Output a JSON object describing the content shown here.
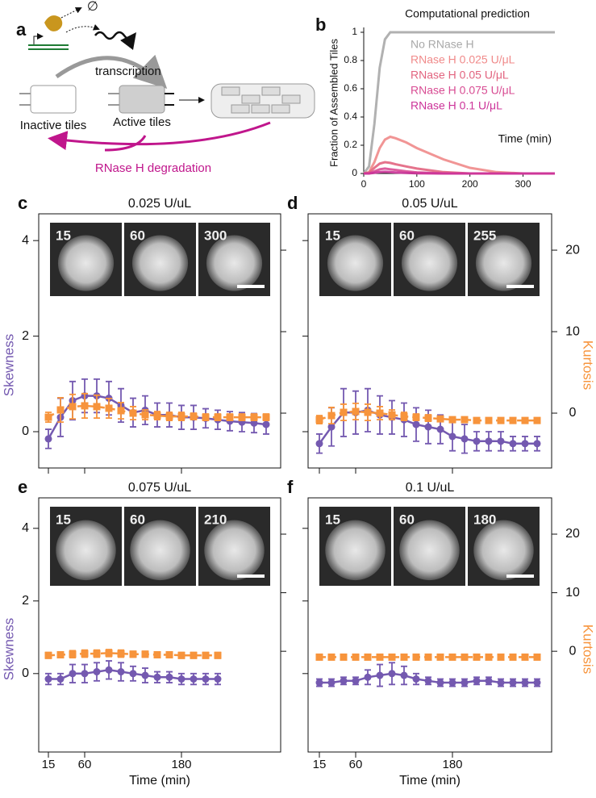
{
  "diagram": {
    "label": "a",
    "empty_set": "∅",
    "transcription": "transcription",
    "inactive": "Inactive tiles",
    "active": "Active tiles",
    "degradation": "RNase H degradation"
  },
  "chart_data": [
    {
      "type": "line",
      "label": "b",
      "title": "Computational prediction",
      "ylabel": "Fraction of Assembled Tiles",
      "annotation": "Time (min)",
      "x": [
        0,
        10,
        20,
        30,
        40,
        50,
        60,
        80,
        100,
        150,
        200,
        250,
        300,
        360
      ],
      "xlim": [
        0,
        360
      ],
      "ylim": [
        0,
        1
      ],
      "xticks": [
        0,
        100,
        200,
        300
      ],
      "yticks": [
        0,
        0.2,
        0.4,
        0.6,
        0.8,
        1
      ],
      "series": [
        {
          "name": "No RNase H",
          "color": "#a9a9a9",
          "values": [
            0,
            0.05,
            0.35,
            0.75,
            0.95,
            1,
            1,
            1,
            1,
            1,
            1,
            1,
            1,
            1
          ]
        },
        {
          "name": "RNase H 0.025 U/μL",
          "color": "#f08a8a",
          "values": [
            0,
            0.01,
            0.08,
            0.18,
            0.24,
            0.26,
            0.25,
            0.22,
            0.18,
            0.1,
            0.04,
            0.01,
            0,
            0
          ]
        },
        {
          "name": "RNase H 0.05 U/μL",
          "color": "#e2647f",
          "values": [
            0,
            0.005,
            0.04,
            0.07,
            0.08,
            0.075,
            0.065,
            0.05,
            0.035,
            0.01,
            0,
            0,
            0,
            0
          ]
        },
        {
          "name": "RNase H 0.075 U/μL",
          "color": "#d84c93",
          "values": [
            0,
            0,
            0.015,
            0.03,
            0.035,
            0.03,
            0.025,
            0.015,
            0.008,
            0,
            0,
            0,
            0,
            0
          ]
        },
        {
          "name": "RNase H 0.1 U/μL",
          "color": "#cc3399",
          "values": [
            0,
            0,
            0.005,
            0.01,
            0.012,
            0.01,
            0.007,
            0.004,
            0.002,
            0,
            0,
            0,
            0,
            0
          ]
        }
      ]
    },
    {
      "type": "errorbar",
      "label": "c",
      "title": "0.025 U/uL",
      "ylabel": "Skewness",
      "insets": [
        "15",
        "60",
        "300"
      ],
      "x": [
        15,
        30,
        45,
        60,
        75,
        90,
        105,
        120,
        135,
        150,
        165,
        180,
        195,
        210,
        225,
        240,
        255,
        270,
        285
      ],
      "xlim": [
        3,
        303
      ],
      "ylim": [
        -0.76,
        4.56
      ],
      "y2lim": [
        -6.73,
        24.46
      ],
      "xticks": [
        15,
        60,
        180
      ],
      "xtick_labels": false,
      "yticks": [
        0,
        2,
        4
      ],
      "ytick_labels": true,
      "y2ticks": [
        0,
        10,
        20
      ],
      "y2tick_labels": false,
      "series": [
        {
          "color": "#7459b0",
          "marker": "o",
          "linestyle": "-",
          "values": [
            -0.15,
            0.3,
            0.65,
            0.75,
            0.75,
            0.7,
            0.55,
            0.4,
            0.45,
            0.35,
            0.35,
            0.3,
            0.3,
            0.28,
            0.25,
            0.22,
            0.2,
            0.18,
            0.15
          ],
          "errors": [
            0.2,
            0.4,
            0.4,
            0.35,
            0.35,
            0.35,
            0.35,
            0.3,
            0.3,
            0.25,
            0.25,
            0.25,
            0.25,
            0.2,
            0.2,
            0.2,
            0.2,
            0.2,
            0.2
          ]
        },
        {
          "color": "#f7943c",
          "marker": "s",
          "linestyle": "--",
          "axis": "y2",
          "values": [
            -0.5,
            0.4,
            0.8,
            0.9,
            0.8,
            0.6,
            0.3,
            0,
            -0.2,
            -0.3,
            -0.4,
            -0.4,
            -0.4,
            -0.5,
            -0.5,
            -0.5,
            -0.5,
            -0.5,
            -0.5
          ],
          "errors": [
            0.6,
            1.5,
            1.5,
            1.5,
            1.4,
            1.2,
            1,
            0.8,
            0.6,
            0.5,
            0.5,
            0.5,
            0.4,
            0.4,
            0.4,
            0.4,
            0.4,
            0.4,
            0.4
          ]
        }
      ]
    },
    {
      "type": "errorbar",
      "label": "d",
      "title": "0.05 U/uL",
      "y2label": "Kurtosis",
      "insets": [
        "15",
        "60",
        "255"
      ],
      "x": [
        15,
        30,
        45,
        60,
        75,
        90,
        105,
        120,
        135,
        150,
        165,
        180,
        195,
        210,
        225,
        240,
        255,
        270,
        285
      ],
      "xlim": [
        1,
        303
      ],
      "ylim": [
        -0.76,
        4.56
      ],
      "y2lim": [
        -6.73,
        24.46
      ],
      "xticks": [
        15,
        60,
        180
      ],
      "xtick_labels": false,
      "yticks": [
        0,
        2,
        4
      ],
      "ytick_labels": false,
      "y2ticks": [
        0,
        10,
        20
      ],
      "y2tick_labels": true,
      "series": [
        {
          "color": "#7459b0",
          "marker": "o",
          "linestyle": "-",
          "values": [
            -0.25,
            0.1,
            0.4,
            0.4,
            0.45,
            0.35,
            0.3,
            0.25,
            0.15,
            0.1,
            0.05,
            -0.1,
            -0.15,
            -0.2,
            -0.2,
            -0.2,
            -0.25,
            -0.25,
            -0.25
          ],
          "errors": [
            0.2,
            0.4,
            0.5,
            0.45,
            0.45,
            0.4,
            0.35,
            0.35,
            0.35,
            0.35,
            0.3,
            0.3,
            0.3,
            0.2,
            0.2,
            0.2,
            0.15,
            0.15,
            0.15
          ]
        },
        {
          "color": "#f7943c",
          "marker": "s",
          "linestyle": "--",
          "axis": "y2",
          "values": [
            -0.8,
            -0.3,
            0.1,
            0.2,
            0.1,
            0,
            -0.2,
            -0.4,
            -0.5,
            -0.6,
            -0.7,
            -0.8,
            -0.8,
            -0.9,
            -0.9,
            -0.9,
            -0.9,
            -0.9,
            -0.9
          ],
          "errors": [
            0.5,
            1,
            1,
            1,
            1,
            0.8,
            0.6,
            0.5,
            0.4,
            0.4,
            0.3,
            0.3,
            0.3,
            0.3,
            0.3,
            0.3,
            0.3,
            0.3,
            0.3
          ]
        }
      ]
    },
    {
      "type": "errorbar",
      "label": "e",
      "title": "0.075 U/uL",
      "ylabel": "Skewness",
      "xlabel": "Time (min)",
      "insets": [
        "15",
        "60",
        "210"
      ],
      "x": [
        15,
        30,
        45,
        60,
        75,
        90,
        105,
        120,
        135,
        150,
        165,
        180,
        195,
        210,
        225
      ],
      "xlim": [
        3,
        303
      ],
      "ylim": [
        -2.16,
        4.84
      ],
      "y2lim": [
        -17.2,
        26.2
      ],
      "xticks": [
        15,
        60,
        180
      ],
      "xtick_labels": true,
      "yticks": [
        0,
        2,
        4
      ],
      "ytick_labels": true,
      "y2ticks": [
        0,
        10,
        20
      ],
      "y2tick_labels": false,
      "series": [
        {
          "color": "#7459b0",
          "marker": "o",
          "linestyle": "-",
          "values": [
            -0.15,
            -0.15,
            0,
            0,
            0.05,
            0.1,
            0.05,
            0,
            -0.05,
            -0.1,
            -0.1,
            -0.15,
            -0.15,
            -0.15,
            -0.15
          ],
          "errors": [
            0.15,
            0.15,
            0.25,
            0.25,
            0.25,
            0.25,
            0.25,
            0.2,
            0.2,
            0.15,
            0.15,
            0.15,
            0.15,
            0.15,
            0.15
          ]
        },
        {
          "color": "#f7943c",
          "marker": "s",
          "linestyle": "--",
          "axis": "y2",
          "values": [
            -0.7,
            -0.6,
            -0.5,
            -0.4,
            -0.4,
            -0.3,
            -0.4,
            -0.5,
            -0.5,
            -0.6,
            -0.6,
            -0.7,
            -0.7,
            -0.7,
            -0.7
          ],
          "errors": [
            0.5,
            0.5,
            0.6,
            0.6,
            0.6,
            0.6,
            0.6,
            0.5,
            0.5,
            0.5,
            0.5,
            0.5,
            0.5,
            0.5,
            0.5
          ]
        }
      ]
    },
    {
      "type": "errorbar",
      "label": "f",
      "title": "0.1 U/uL",
      "y2label": "Kurtosis",
      "xlabel": "Time (min)",
      "insets": [
        "15",
        "60",
        "180"
      ],
      "x": [
        15,
        30,
        45,
        60,
        75,
        90,
        105,
        120,
        135,
        150,
        165,
        180,
        195,
        210,
        225,
        240,
        255,
        270,
        285
      ],
      "xlim": [
        1,
        303
      ],
      "ylim": [
        -2.16,
        4.84
      ],
      "y2lim": [
        -17.2,
        26.2
      ],
      "xticks": [
        15,
        60,
        180
      ],
      "xtick_labels": true,
      "yticks": [
        0,
        2,
        4
      ],
      "ytick_labels": false,
      "y2ticks": [
        0,
        10,
        20
      ],
      "y2tick_labels": true,
      "series": [
        {
          "color": "#7459b0",
          "marker": "o",
          "linestyle": "-",
          "values": [
            -0.25,
            -0.25,
            -0.2,
            -0.2,
            -0.1,
            -0.05,
            0,
            -0.05,
            -0.15,
            -0.2,
            -0.25,
            -0.25,
            -0.25,
            -0.2,
            -0.2,
            -0.25,
            -0.25,
            -0.25,
            -0.25
          ],
          "errors": [
            0.1,
            0.1,
            0.1,
            0.1,
            0.2,
            0.3,
            0.3,
            0.25,
            0.15,
            0.1,
            0.1,
            0.1,
            0.1,
            0.1,
            0.1,
            0.1,
            0.1,
            0.1,
            0.1
          ]
        },
        {
          "color": "#f7943c",
          "marker": "s",
          "linestyle": "--",
          "axis": "y2",
          "values": [
            -1,
            -1,
            -1,
            -1,
            -1,
            -1,
            -1,
            -1,
            -1,
            -1,
            -1,
            -1,
            -1,
            -1,
            -1,
            -1,
            -1,
            -1,
            -1
          ],
          "errors": [
            0.3,
            0.3,
            0.3,
            0.3,
            0.3,
            0.3,
            0.3,
            0.3,
            0.3,
            0.3,
            0.3,
            0.3,
            0.3,
            0.3,
            0.3,
            0.3,
            0.3,
            0.3,
            0.3
          ]
        }
      ]
    }
  ]
}
